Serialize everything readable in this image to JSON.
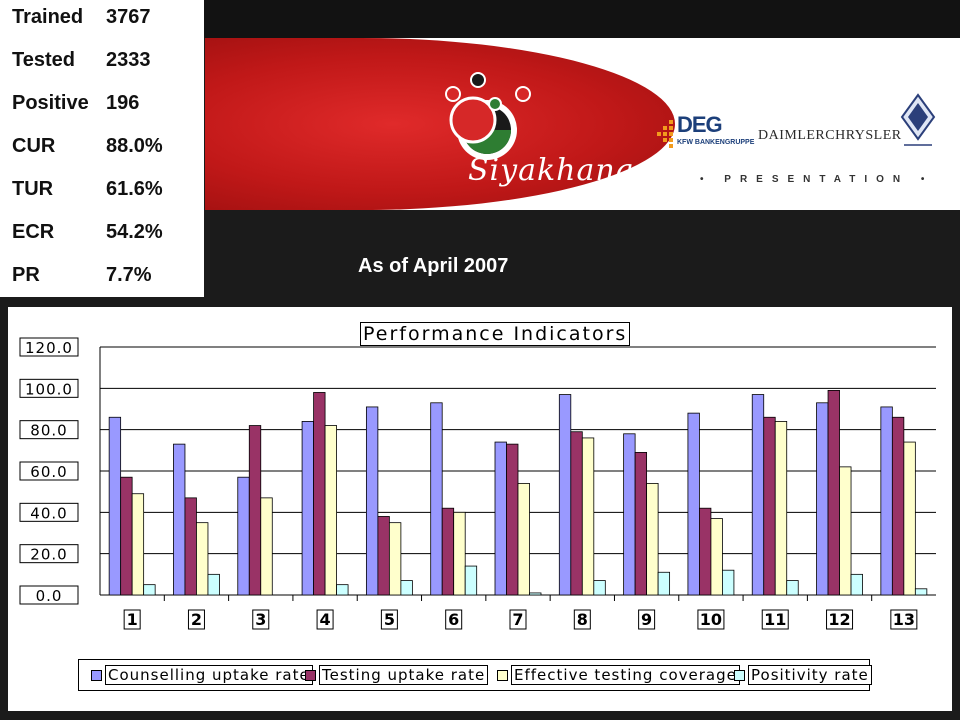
{
  "stats": [
    {
      "label": "Trained",
      "value": "3767"
    },
    {
      "label": "Tested",
      "value": "2333"
    },
    {
      "label": "Positive",
      "value": "196"
    },
    {
      "label": "CUR",
      "value": "88.0%"
    },
    {
      "label": "TUR",
      "value": "61.6%"
    },
    {
      "label": "ECR",
      "value": "54.2%"
    },
    {
      "label": "PR",
      "value": "7.7%"
    }
  ],
  "banner": {
    "brand": "Siyakhana",
    "deg": "DEG",
    "deg_sub": "KFW BANKENGRUPPE",
    "daimler": "DAIMLERCHRYSLER",
    "presentation": "• PRESENTATION •"
  },
  "as_of": "As of April 2007",
  "colors": {
    "counselling": "#9999ff",
    "testing": "#993366",
    "coverage": "#ffffcc",
    "positivity": "#ccffff",
    "accent_red": "#c81e1e"
  },
  "chart_data": {
    "type": "bar",
    "title": "Performance Indicators",
    "categories": [
      "1",
      "2",
      "3",
      "4",
      "5",
      "6",
      "7",
      "8",
      "9",
      "10",
      "11",
      "12",
      "13"
    ],
    "ylim": [
      0,
      120
    ],
    "yticks": [
      "0.0",
      "20.0",
      "40.0",
      "60.0",
      "80.0",
      "100.0",
      "120.0"
    ],
    "grid": true,
    "legend_position": "bottom",
    "series": [
      {
        "name": "Counselling uptake rate",
        "values": [
          86,
          73,
          57,
          84,
          91,
          93,
          74,
          97,
          78,
          88,
          97,
          93,
          91
        ]
      },
      {
        "name": "Testing uptake rate",
        "values": [
          57,
          47,
          82,
          98,
          38,
          42,
          73,
          79,
          69,
          42,
          86,
          99,
          86
        ]
      },
      {
        "name": "Effective testing coverage",
        "values": [
          49,
          35,
          47,
          82,
          35,
          40,
          54,
          76,
          54,
          37,
          84,
          62,
          74
        ]
      },
      {
        "name": "Positivity rate",
        "values": [
          5,
          10,
          0,
          5,
          7,
          14,
          1,
          7,
          11,
          12,
          7,
          10,
          3
        ]
      }
    ]
  }
}
